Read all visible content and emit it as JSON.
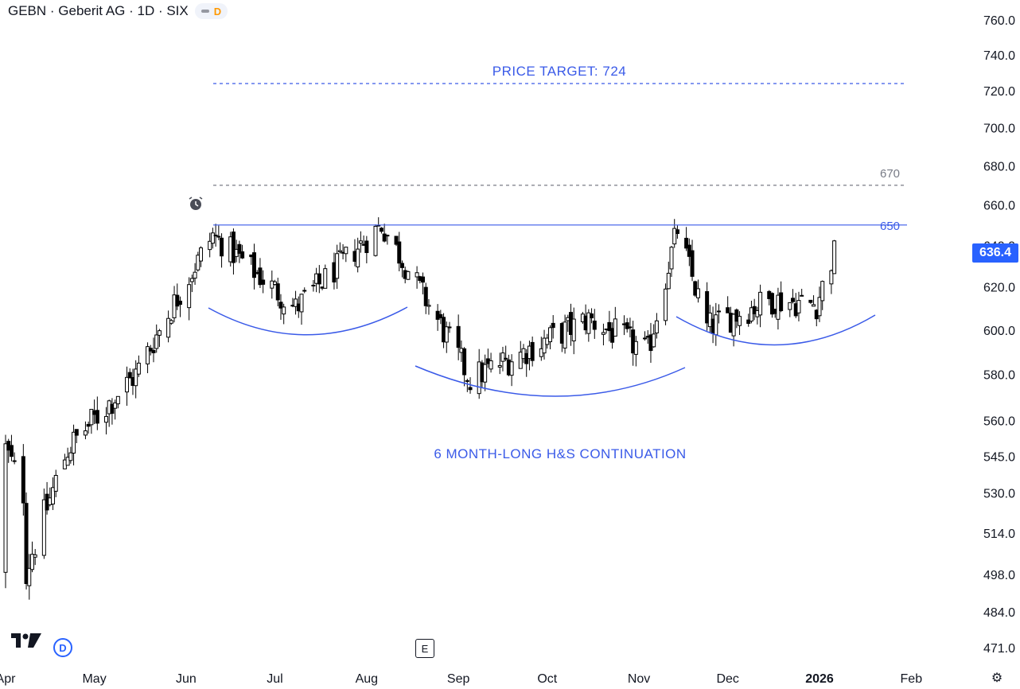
{
  "header": {
    "symbol": "GEBN",
    "name": "Geberit AG",
    "interval": "1D",
    "exchange": "SIX",
    "title_line": "GEBN · Geberit AG · 1D · SIX",
    "badge_letter": "D"
  },
  "badges": {
    "left_d": "D",
    "earnings": "E"
  },
  "icons": [
    "tradingview-logo-icon",
    "alarm-clock-icon",
    "settings-gear-icon"
  ],
  "colors": {
    "accent": "#2962ff",
    "annotation_blue": "#3a5ae8",
    "candle_up_fill": "#ffffff",
    "candle_down_fill": "#000000",
    "grey_text": "#787b86"
  },
  "annotations": {
    "price_target_label": "PRICE TARGET: 724",
    "pattern_label": "6 MONTH-LONG H&S CONTINUATION",
    "level_670_label": "670",
    "level_650_label": "650",
    "last_price_label": "636.4"
  },
  "chart_data": {
    "type": "candlestick",
    "title": "GEBN · Geberit AG · 1D · SIX",
    "x_axis_labels": [
      "Apr",
      "May",
      "Jun",
      "Jul",
      "Aug",
      "Sep",
      "Oct",
      "Nov",
      "Dec",
      "2026",
      "Feb"
    ],
    "y_axis_labels": [
      "760.0",
      "740.0",
      "720.0",
      "700.0",
      "680.0",
      "660.0",
      "640.0",
      "620.0",
      "600.0",
      "580.0",
      "560.0",
      "545.0",
      "530.0",
      "514.0",
      "498.0",
      "484.0",
      "471.0"
    ],
    "y_scale": "log",
    "ylim": [
      466,
      770
    ],
    "horizontal_levels": [
      {
        "value": 724,
        "label": "PRICE TARGET: 724",
        "style": "dashed",
        "color": "#3a5ae8"
      },
      {
        "value": 670,
        "label": "670",
        "style": "dashed",
        "color": "#787b86"
      },
      {
        "value": 650,
        "label": "650",
        "style": "solid",
        "color": "#3a5ae8"
      }
    ],
    "last_price": 636.4,
    "pattern": "6 MONTH-LONG H&S CONTINUATION",
    "key_closes": [
      {
        "date": "2025-04-08",
        "close": 500
      },
      {
        "date": "2025-04-22",
        "close": 548
      },
      {
        "date": "2025-05-15",
        "close": 580
      },
      {
        "date": "2025-06-10",
        "close": 645
      },
      {
        "date": "2025-07-08",
        "close": 610
      },
      {
        "date": "2025-08-06",
        "close": 650
      },
      {
        "date": "2025-09-05",
        "close": 578
      },
      {
        "date": "2025-10-15",
        "close": 605
      },
      {
        "date": "2025-11-04",
        "close": 590
      },
      {
        "date": "2025-11-14",
        "close": 648
      },
      {
        "date": "2025-11-24",
        "close": 601
      },
      {
        "date": "2025-12-15",
        "close": 614
      },
      {
        "date": "2025-12-31",
        "close": 612
      },
      {
        "date": "2026-01-06",
        "close": 636.4
      }
    ]
  }
}
